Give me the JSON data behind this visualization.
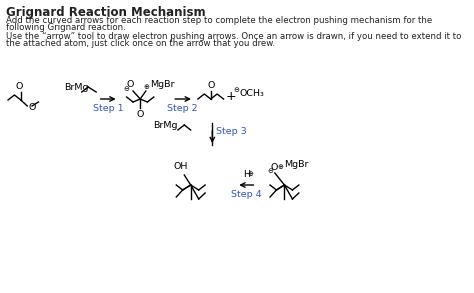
{
  "title": "Grignard Reaction Mechanism",
  "line1": "Add the curved arrows for each reaction step to complete the electron pushing mechanism for the",
  "line2": "following Grignard reaction.",
  "line3": "Use the “arrow” tool to draw electron pushing arrows. Once an arrow is drawn, if you need to extend it to",
  "line4": "the attached atom, just click once on the arrow that you drew.",
  "bg_color": "#ffffff",
  "text_color": "#222222",
  "step_color": "#3355bb",
  "title_fs": 8.5,
  "body_fs": 6.2,
  "chem_fs": 6.8,
  "step_fs": 6.8
}
